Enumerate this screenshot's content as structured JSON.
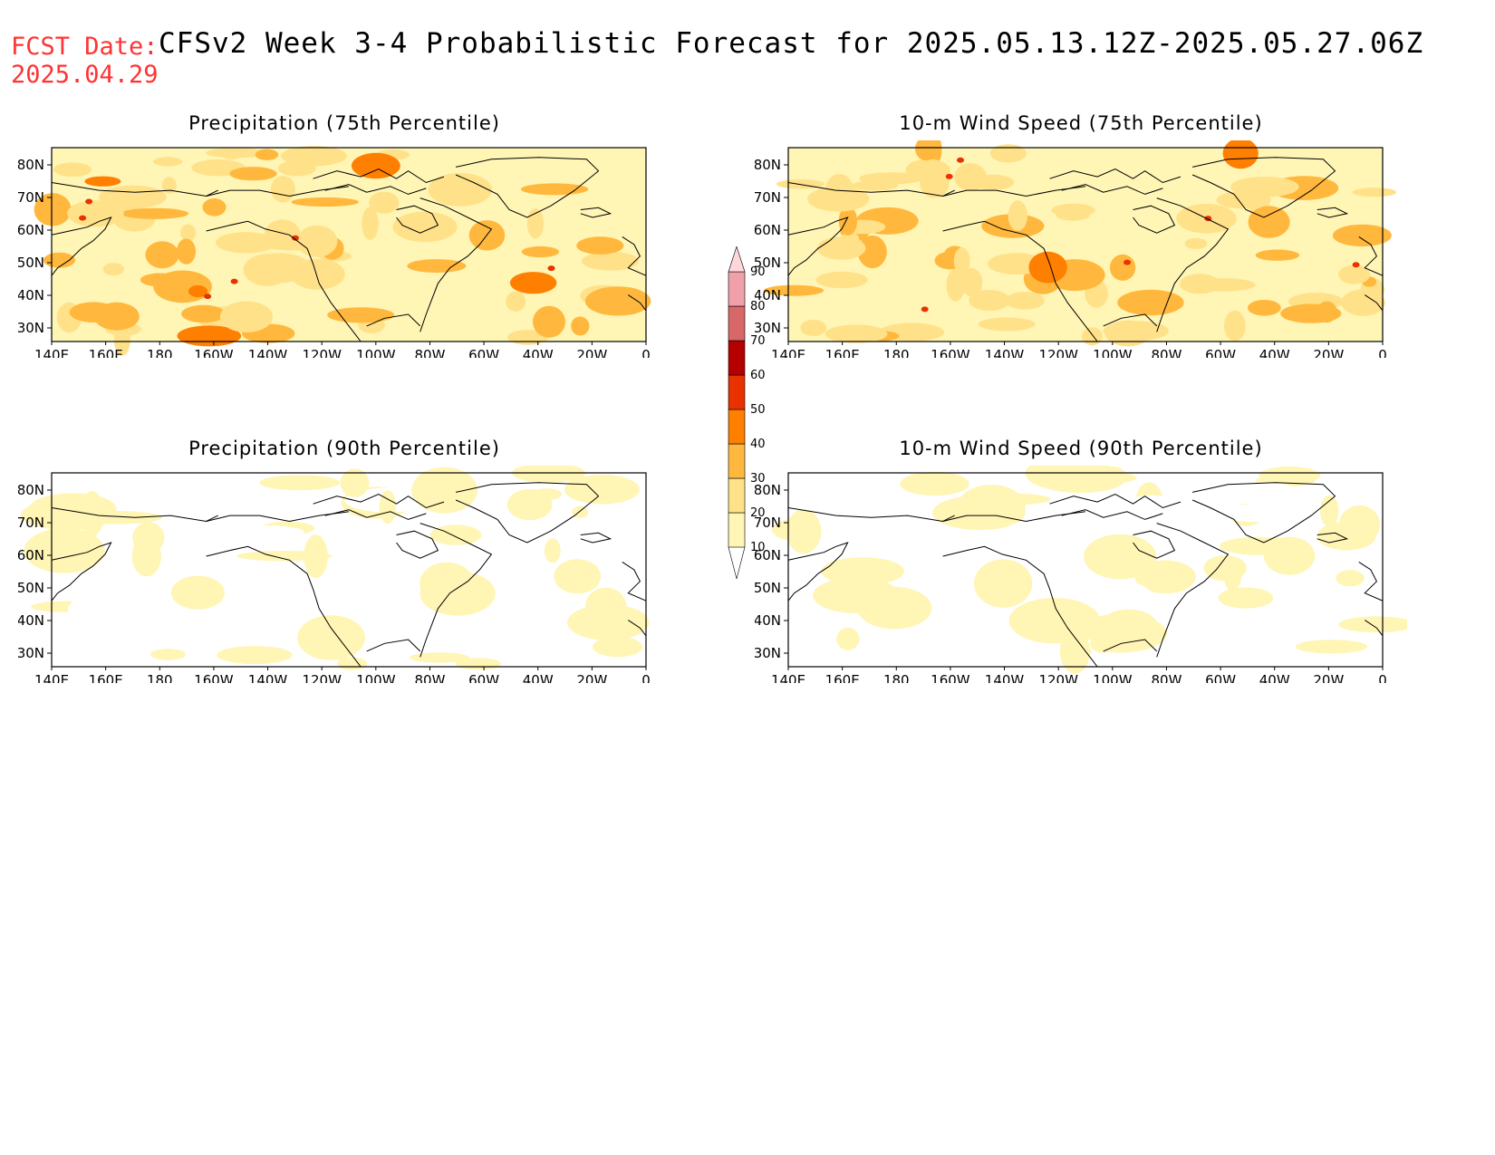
{
  "header": {
    "fcst_label": "FCST Date:",
    "fcst_date": "2025.04.29",
    "title": "CFSv2 Week 3-4 Probabilistic Forecast for 2025.05.13.12Z-2025.05.27.06Z"
  },
  "colors": {
    "label_red": "#ff3333",
    "fill_scale": [
      "#ffffff",
      "#fff5b5",
      "#ffe18a",
      "#ffb83d",
      "#ff7f00",
      "#e83200",
      "#b40000",
      "#d86868",
      "#f0a0a8",
      "#ffd6da"
    ],
    "coastline": "#000000"
  },
  "axes": {
    "lat_labels": [
      "80N",
      "70N",
      "60N",
      "50N",
      "40N",
      "30N"
    ],
    "lon_labels": [
      "140E",
      "160E",
      "180",
      "160W",
      "140W",
      "120W",
      "100W",
      "80W",
      "60W",
      "40W",
      "20W",
      "0"
    ]
  },
  "panels": [
    {
      "id": "precip75",
      "title": "Precipitation (75th Percentile)",
      "intensity": "high"
    },
    {
      "id": "wind75",
      "title": "10-m Wind Speed (75th Percentile)",
      "intensity": "high"
    },
    {
      "id": "precip90",
      "title": "Precipitation (90th Percentile)",
      "intensity": "low"
    },
    {
      "id": "wind90",
      "title": "10-m Wind Speed (90th Percentile)",
      "intensity": "low"
    }
  ],
  "colorbar": {
    "levels": [
      "10",
      "20",
      "30",
      "40",
      "50",
      "60",
      "70",
      "80",
      "90"
    ]
  }
}
